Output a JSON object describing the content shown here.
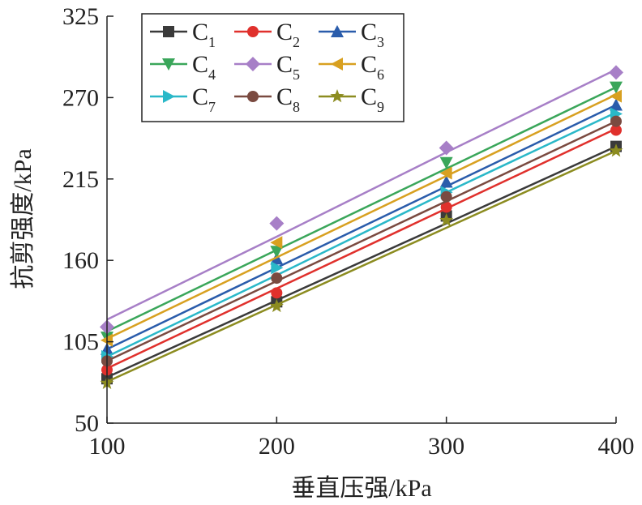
{
  "chart_data": {
    "type": "line",
    "xlabel": "垂直压强/kPa",
    "ylabel": "抗剪强度/kPa",
    "x": [
      100,
      200,
      300,
      400
    ],
    "xlim": [
      100,
      400
    ],
    "ylim": [
      50,
      325
    ],
    "xticks": [
      "100",
      "200",
      "300",
      "400"
    ],
    "yticks": [
      "50",
      "105",
      "160",
      "215",
      "270",
      "325"
    ],
    "grid": false,
    "legend_position": "top-left",
    "series": [
      {
        "name": "C",
        "sub": "1",
        "color": "#3a3a3a",
        "marker": "square",
        "values": [
          80,
          132,
          190,
          237
        ],
        "fit": [
          81,
          133,
          185,
          237
        ]
      },
      {
        "name": "C",
        "sub": "2",
        "color": "#e0302c",
        "marker": "circle",
        "values": [
          86,
          138,
          196,
          248
        ],
        "fit": [
          87,
          141,
          195,
          249
        ]
      },
      {
        "name": "C",
        "sub": "3",
        "color": "#2a5cab",
        "marker": "triangle-up",
        "values": [
          100,
          161,
          213,
          265
        ],
        "fit": [
          100,
          155,
          210,
          265
        ]
      },
      {
        "name": "C",
        "sub": "4",
        "color": "#3aa65a",
        "marker": "triangle-down",
        "values": [
          108,
          166,
          226,
          277
        ],
        "fit": [
          112,
          167,
          222,
          277
        ]
      },
      {
        "name": "C",
        "sub": "5",
        "color": "#a77fc7",
        "marker": "diamond",
        "values": [
          115,
          185,
          236,
          287
        ],
        "fit": [
          120,
          176,
          233,
          289
        ]
      },
      {
        "name": "C",
        "sub": "6",
        "color": "#d8a020",
        "marker": "triangle-left",
        "values": [
          106,
          172,
          219,
          271
        ],
        "fit": [
          107,
          162,
          217,
          272
        ]
      },
      {
        "name": "C",
        "sub": "7",
        "color": "#2ab8c8",
        "marker": "triangle-right",
        "values": [
          95,
          155,
          206,
          259
        ],
        "fit": [
          95,
          150,
          206,
          260
        ]
      },
      {
        "name": "C",
        "sub": "8",
        "color": "#7a4a40",
        "marker": "circle",
        "values": [
          92,
          148,
          203,
          254
        ],
        "fit": [
          92,
          146,
          200,
          254
        ]
      },
      {
        "name": "C",
        "sub": "9",
        "color": "#8c8c20",
        "marker": "star",
        "values": [
          77,
          129,
          187,
          234
        ],
        "fit": [
          78,
          130,
          182,
          234
        ]
      }
    ]
  }
}
